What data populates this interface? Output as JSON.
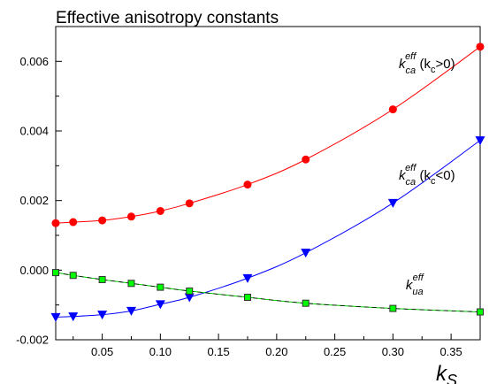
{
  "chart_data": {
    "type": "line",
    "title": "Effective anisotropy constants",
    "xlabel": "k",
    "xlabel_sub": "S",
    "ylabel": "",
    "xlim": [
      0.01,
      0.375
    ],
    "ylim": [
      -0.002,
      0.007
    ],
    "x_ticks": [
      0.05,
      0.1,
      0.15,
      0.2,
      0.25,
      0.3,
      0.35
    ],
    "x_tick_labels": [
      "0.05",
      "0.10",
      "0.15",
      "0.20",
      "0.25",
      "0.30",
      "0.35"
    ],
    "y_ticks": [
      -0.002,
      0.0,
      0.002,
      0.004,
      0.006
    ],
    "y_tick_labels": [
      "-0.002",
      "0.000",
      "0.002",
      "0.004",
      "0.006"
    ],
    "grid": false,
    "series": [
      {
        "color": "#ff0000",
        "marker": "circle",
        "x": [
          0.01,
          0.025,
          0.05,
          0.075,
          0.1,
          0.125,
          0.175,
          0.225,
          0.3,
          0.375
        ],
        "y": [
          0.00135,
          0.00138,
          0.00143,
          0.00154,
          0.0017,
          0.00192,
          0.00246,
          0.00318,
          0.00462,
          0.00642
        ]
      },
      {
        "color": "#0000ff",
        "marker": "triangle-down",
        "x": [
          0.01,
          0.025,
          0.05,
          0.075,
          0.1,
          0.125,
          0.175,
          0.225,
          0.3,
          0.375
        ],
        "y": [
          -0.00135,
          -0.00133,
          -0.00128,
          -0.00117,
          -0.00098,
          -0.00078,
          -0.00023,
          0.0005,
          0.00193,
          0.00373
        ]
      },
      {
        "color": "#00cc00",
        "marker": "square",
        "x": [
          0.01,
          0.025,
          0.05,
          0.075,
          0.1,
          0.125,
          0.175,
          0.225,
          0.3,
          0.375
        ],
        "y": [
          -7e-05,
          -0.00015,
          -0.00027,
          -0.00038,
          -0.00049,
          -0.0006,
          -0.00078,
          -0.00095,
          -0.0011,
          -0.0012
        ]
      }
    ],
    "annotations": [
      {
        "base": "k",
        "sub": "ca",
        "sup": "eff",
        "note_pre": " (k",
        "note_sub": "c",
        "note_post": ">0)",
        "at": [
          0.305,
          0.0058
        ]
      },
      {
        "base": "k",
        "sub": "ca",
        "sup": "eff",
        "note_pre": " (k",
        "note_sub": "c",
        "note_post": "<0)",
        "at": [
          0.305,
          0.0026
        ]
      },
      {
        "base": "k",
        "sub": "ua",
        "sup": "eff",
        "note_pre": "",
        "note_sub": "",
        "note_post": "",
        "at": [
          0.311,
          -0.00055
        ]
      }
    ]
  }
}
